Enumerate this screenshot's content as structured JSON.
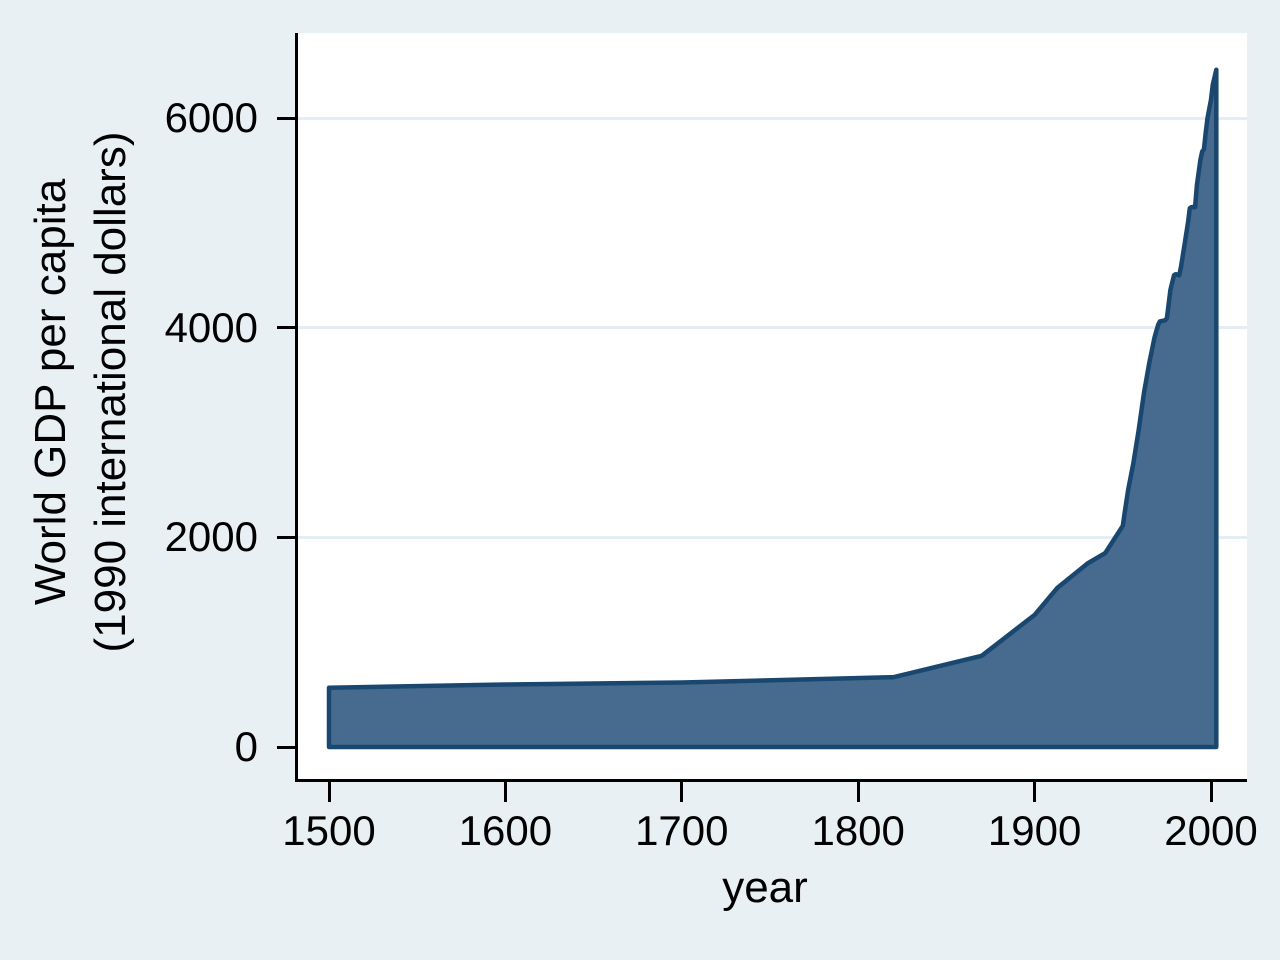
{
  "figure": {
    "background_color": "#e9f0f3",
    "plot_background_color": "#ffffff",
    "gridline_color": "#e4edf1",
    "axis_color": "#000000"
  },
  "chart_data": {
    "type": "area",
    "title": "",
    "xlabel": "year",
    "ylabel_lines": [
      "World GDP per capita",
      "(1990 international dollars)"
    ],
    "x_ticks": [
      "1500",
      "1600",
      "1700",
      "1800",
      "1900",
      "2000"
    ],
    "y_ticks": [
      "0",
      "2000",
      "4000",
      "6000"
    ],
    "y_gridlines": [
      2000,
      4000,
      6000
    ],
    "xlim": [
      1482,
      2020
    ],
    "ylim": [
      0,
      6812
    ],
    "grid": "horizontal",
    "legend": "none",
    "series": [
      {
        "name": "World GDP per capita (1990 international dollars)",
        "fill_color": "#476b8f",
        "line_color": "#1a476f",
        "baseline": 0,
        "points": [
          [
            1500,
            566
          ],
          [
            1600,
            596
          ],
          [
            1700,
            615
          ],
          [
            1820,
            666
          ],
          [
            1870,
            870
          ],
          [
            1900,
            1260
          ],
          [
            1913,
            1520
          ],
          [
            1930,
            1750
          ],
          [
            1940,
            1850
          ],
          [
            1950,
            2110
          ],
          [
            1951,
            2230
          ],
          [
            1953,
            2450
          ],
          [
            1956,
            2710
          ],
          [
            1959,
            3025
          ],
          [
            1962,
            3380
          ],
          [
            1965,
            3665
          ],
          [
            1968,
            3910
          ],
          [
            1970,
            4025
          ],
          [
            1971,
            4060
          ],
          [
            1974,
            4070
          ],
          [
            1975,
            4090
          ],
          [
            1977,
            4360
          ],
          [
            1979,
            4500
          ],
          [
            1980,
            4510
          ],
          [
            1982,
            4500
          ],
          [
            1983,
            4580
          ],
          [
            1985,
            4790
          ],
          [
            1987,
            5010
          ],
          [
            1988,
            5140
          ],
          [
            1989,
            5150
          ],
          [
            1991,
            5150
          ],
          [
            1992,
            5360
          ],
          [
            1994,
            5600
          ],
          [
            1995,
            5680
          ],
          [
            1996,
            5700
          ],
          [
            1997,
            5860
          ],
          [
            1998,
            6000
          ],
          [
            2000,
            6175
          ],
          [
            2001,
            6320
          ],
          [
            2003,
            6460
          ]
        ]
      }
    ]
  }
}
